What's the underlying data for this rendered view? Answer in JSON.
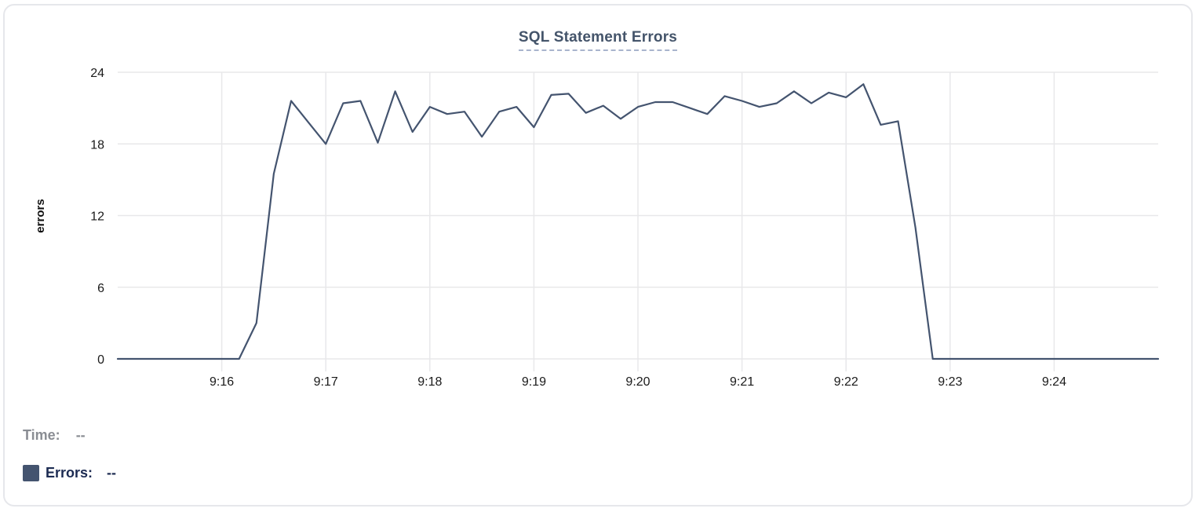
{
  "chart": {
    "title": "SQL Statement Errors"
  },
  "tooltip": {
    "time_label": "Time:",
    "time_value": "--",
    "errors_label": "Errors:",
    "errors_value": "--"
  },
  "colors": {
    "line": "#44546f",
    "swatch": "#44546f",
    "title": "#44546a",
    "grid": "#e8e8ea",
    "tick_text": "#1a1a1a",
    "card_border": "#e6e7eb"
  },
  "chart_data": {
    "type": "line",
    "title": "SQL Statement Errors",
    "xlabel": "",
    "ylabel": "errors",
    "ylim": [
      0,
      24
    ],
    "y_ticks": [
      0,
      6,
      12,
      18,
      24
    ],
    "x_tick_labels": [
      "9:16",
      "9:17",
      "9:18",
      "9:19",
      "9:20",
      "9:21",
      "9:22",
      "9:23",
      "9:24"
    ],
    "x_start": "9:15:00",
    "x_end": "9:25:00",
    "sample_interval_seconds": 10,
    "grid": true,
    "legend_position": "none",
    "series": [
      {
        "name": "Errors",
        "color": "#44546f",
        "values": [
          0,
          0,
          0,
          0,
          0,
          0,
          0,
          0,
          3,
          15.5,
          21.6,
          19.8,
          18,
          21.4,
          21.6,
          18.1,
          22.4,
          19,
          21.1,
          20.5,
          20.7,
          18.6,
          20.7,
          21.1,
          19.4,
          22.1,
          22.2,
          20.6,
          21.2,
          20.1,
          21.1,
          21.5,
          21.5,
          21,
          20.5,
          22,
          21.6,
          21.1,
          21.4,
          22.4,
          21.4,
          22.3,
          21.9,
          23,
          19.6,
          19.9,
          11,
          0,
          0,
          0,
          0,
          0,
          0,
          0,
          0,
          0,
          0,
          0,
          0,
          0,
          0
        ]
      }
    ]
  }
}
